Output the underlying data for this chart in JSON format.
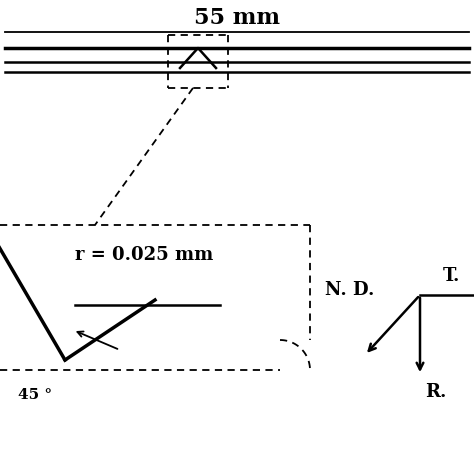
{
  "title": "55 mm",
  "radius_label": "r = 0.025 mm",
  "angle_label": "45 °",
  "nd_label": "N. D.",
  "r_label": "R.",
  "t_label": "T.",
  "bg_color": "#ffffff",
  "line_color": "#000000"
}
